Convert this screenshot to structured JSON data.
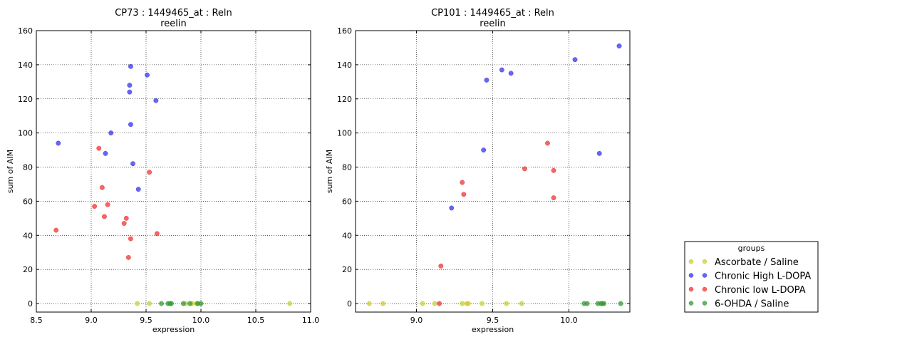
{
  "chart_data": [
    {
      "type": "scatter",
      "title": "CP73 : 1449465_at : Reln",
      "subtitle": "reelin",
      "xlabel": "expression",
      "ylabel": "sum of AIM",
      "xlim": [
        8.5,
        11.0
      ],
      "ylim": [
        -5,
        160
      ],
      "xticks": [
        8.5,
        9.0,
        9.5,
        10.0,
        10.5,
        11.0
      ],
      "xtick_labels": [
        "8.5",
        "9.0",
        "9.5",
        "10.0",
        "10.5",
        "11.0"
      ],
      "yticks": [
        0,
        20,
        40,
        60,
        80,
        100,
        120,
        140,
        160
      ],
      "ytick_labels": [
        "0",
        "20",
        "40",
        "60",
        "80",
        "100",
        "120",
        "140",
        "160"
      ],
      "grid": true,
      "series": [
        {
          "name": "Ascorbate / Saline",
          "color": "#cccc33",
          "points": [
            [
              9.42,
              0
            ],
            [
              9.53,
              0
            ],
            [
              9.86,
              0
            ],
            [
              9.92,
              0
            ],
            [
              9.96,
              0
            ],
            [
              9.97,
              0
            ],
            [
              10.81,
              0
            ]
          ]
        },
        {
          "name": "Chronic High L-DOPA",
          "color": "#3333ee",
          "points": [
            [
              8.7,
              94
            ],
            [
              9.13,
              88
            ],
            [
              9.18,
              100
            ],
            [
              9.35,
              128
            ],
            [
              9.35,
              124
            ],
            [
              9.36,
              139
            ],
            [
              9.36,
              105
            ],
            [
              9.38,
              82
            ],
            [
              9.43,
              67
            ],
            [
              9.51,
              134
            ],
            [
              9.59,
              119
            ]
          ]
        },
        {
          "name": "Chronic low L-DOPA",
          "color": "#ee3333",
          "points": [
            [
              8.68,
              43
            ],
            [
              9.03,
              57
            ],
            [
              9.07,
              91
            ],
            [
              9.1,
              68
            ],
            [
              9.12,
              51
            ],
            [
              9.15,
              58
            ],
            [
              9.3,
              47
            ],
            [
              9.32,
              50
            ],
            [
              9.34,
              27
            ],
            [
              9.36,
              38
            ],
            [
              9.53,
              77
            ],
            [
              9.6,
              41
            ]
          ]
        },
        {
          "name": "6-OHDA / Saline",
          "color": "#339933",
          "points": [
            [
              9.64,
              0
            ],
            [
              9.7,
              0
            ],
            [
              9.72,
              0
            ],
            [
              9.73,
              0
            ],
            [
              9.84,
              0
            ],
            [
              9.9,
              0
            ],
            [
              9.97,
              0
            ],
            [
              10.0,
              0
            ]
          ]
        }
      ]
    },
    {
      "type": "scatter",
      "title": "CP101 : 1449465_at : Reln",
      "subtitle": "reelin",
      "xlabel": "expression",
      "ylabel": "sum of AIM",
      "xlim": [
        8.6,
        10.4
      ],
      "ylim": [
        -5,
        160
      ],
      "xticks": [
        9.0,
        9.5,
        10.0
      ],
      "xtick_labels": [
        "9.0",
        "9.5",
        "10.0"
      ],
      "yticks": [
        0,
        20,
        40,
        60,
        80,
        100,
        120,
        140,
        160
      ],
      "ytick_labels": [
        "0",
        "20",
        "40",
        "60",
        "80",
        "100",
        "120",
        "140",
        "160"
      ],
      "grid": true,
      "series": [
        {
          "name": "Ascorbate / Saline",
          "color": "#cccc33",
          "points": [
            [
              8.69,
              0
            ],
            [
              8.78,
              0
            ],
            [
              9.04,
              0
            ],
            [
              9.12,
              0
            ],
            [
              9.3,
              0
            ],
            [
              9.33,
              0
            ],
            [
              9.34,
              0
            ],
            [
              9.43,
              0
            ],
            [
              9.59,
              0
            ],
            [
              9.69,
              0
            ]
          ]
        },
        {
          "name": "Chronic High L-DOPA",
          "color": "#3333ee",
          "points": [
            [
              9.23,
              56
            ],
            [
              9.44,
              90
            ],
            [
              9.46,
              131
            ],
            [
              9.56,
              137
            ],
            [
              9.62,
              135
            ],
            [
              10.04,
              143
            ],
            [
              10.2,
              88
            ],
            [
              10.33,
              151
            ]
          ]
        },
        {
          "name": "Chronic low L-DOPA",
          "color": "#ee3333",
          "points": [
            [
              9.15,
              0
            ],
            [
              9.16,
              22
            ],
            [
              9.3,
              71
            ],
            [
              9.31,
              64
            ],
            [
              9.71,
              79
            ],
            [
              9.86,
              94
            ],
            [
              9.9,
              78
            ],
            [
              9.9,
              62
            ]
          ]
        },
        {
          "name": "6-OHDA / Saline",
          "color": "#339933",
          "points": [
            [
              10.1,
              0
            ],
            [
              10.12,
              0
            ],
            [
              10.19,
              0
            ],
            [
              10.21,
              0
            ],
            [
              10.22,
              0
            ],
            [
              10.23,
              0
            ],
            [
              10.34,
              0
            ]
          ]
        }
      ]
    }
  ],
  "legend": {
    "title": "groups",
    "placement": "lower-right",
    "entries": [
      {
        "label": "Ascorbate / Saline",
        "color": "#cccc33"
      },
      {
        "label": "Chronic High L-DOPA",
        "color": "#3333ee"
      },
      {
        "label": "Chronic low L-DOPA",
        "color": "#ee3333"
      },
      {
        "label": "6-OHDA / Saline",
        "color": "#339933"
      }
    ]
  }
}
